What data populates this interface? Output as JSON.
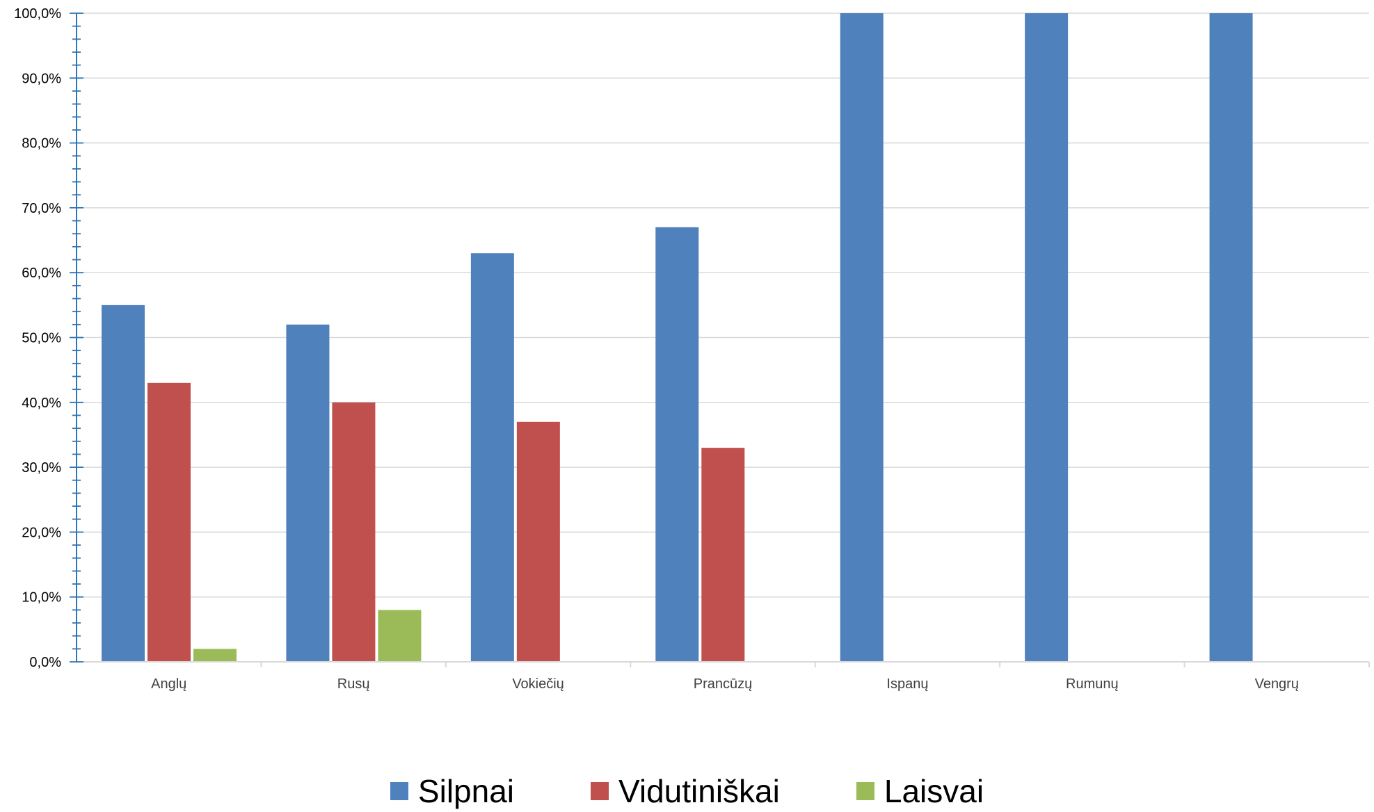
{
  "chart_data": {
    "type": "bar",
    "categories": [
      "Anglų",
      "Rusų",
      "Vokiečių",
      "Prancūzų",
      "Ispanų",
      "Rumunų",
      "Vengrų"
    ],
    "series": [
      {
        "name": "Silpnai",
        "color": "#4F81BD",
        "values": [
          55,
          52,
          63,
          67,
          100,
          100,
          100
        ]
      },
      {
        "name": "Vidutiniškai",
        "color": "#C0504D",
        "values": [
          43,
          40,
          37,
          33,
          0,
          0,
          0
        ]
      },
      {
        "name": "Laisvai",
        "color": "#9BBB59",
        "values": [
          2,
          8,
          0,
          0,
          0,
          0,
          0
        ]
      }
    ],
    "yticks": [
      "0,0%",
      "10,0%",
      "20,0%",
      "30,0%",
      "40,0%",
      "50,0%",
      "60,0%",
      "70,0%",
      "80,0%",
      "90,0%",
      "100,0%"
    ],
    "ylim": [
      0,
      100
    ],
    "grid": true,
    "legend_position": "bottom",
    "axis_color": "#2E75B6",
    "grid_color": "#D9D9D9"
  },
  "legend": {
    "items": [
      {
        "label": "Silpnai",
        "color": "#4F81BD"
      },
      {
        "label": "Vidutiniškai",
        "color": "#C0504D"
      },
      {
        "label": "Laisvai",
        "color": "#9BBB59"
      }
    ]
  }
}
